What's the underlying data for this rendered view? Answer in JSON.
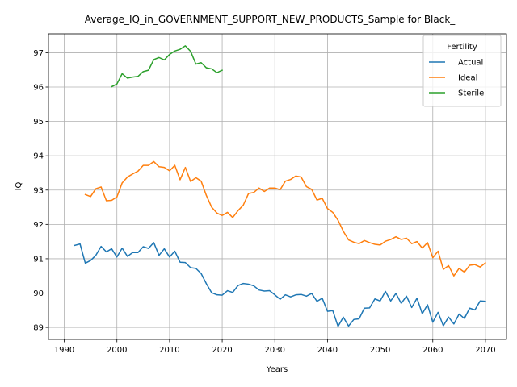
{
  "chart_data": {
    "type": "line",
    "title": "Average_IQ_in_GOVERNMENT_SUPPORT_NEW_PRODUCTS_Sample for Black_",
    "xlabel": "Years",
    "ylabel": "IQ",
    "xlim": [
      1987,
      2074
    ],
    "ylim": [
      88.65,
      97.55
    ],
    "xticks": [
      1990,
      2000,
      2010,
      2020,
      2030,
      2040,
      2050,
      2060,
      2070
    ],
    "yticks": [
      89,
      90,
      91,
      92,
      93,
      94,
      95,
      96,
      97
    ],
    "grid": true,
    "legend": {
      "title": "Fertility",
      "placement": "top-right"
    },
    "series": [
      {
        "name": "Actual",
        "color": "#1f77b4",
        "x": [
          1992,
          1993,
          1994,
          1995,
          1996,
          1997,
          1998,
          1999,
          2000,
          2001,
          2002,
          2003,
          2004,
          2005,
          2006,
          2007,
          2008,
          2009,
          2010,
          2011,
          2012,
          2013,
          2014,
          2015,
          2016,
          2017,
          2018,
          2019,
          2020,
          2021,
          2022,
          2023,
          2024,
          2025,
          2026,
          2027,
          2028,
          2029,
          2030,
          2031,
          2032,
          2033,
          2034,
          2035,
          2036,
          2037,
          2038,
          2039,
          2040,
          2041,
          2042,
          2043,
          2044,
          2045,
          2046,
          2047,
          2048,
          2049,
          2050,
          2051,
          2052,
          2053,
          2054,
          2055,
          2056,
          2057,
          2058,
          2059,
          2060,
          2061,
          2062,
          2063,
          2064,
          2065,
          2066,
          2067,
          2068,
          2069,
          2070
        ],
        "values": [
          91.39,
          91.43,
          90.87,
          90.95,
          91.1,
          91.36,
          91.2,
          91.29,
          91.05,
          91.31,
          91.07,
          91.18,
          91.18,
          91.35,
          91.3,
          91.47,
          91.1,
          91.29,
          91.05,
          91.22,
          90.9,
          90.89,
          90.74,
          90.72,
          90.57,
          90.27,
          90.01,
          89.95,
          89.94,
          90.07,
          90.02,
          90.22,
          90.28,
          90.26,
          90.21,
          90.09,
          90.06,
          90.07,
          89.95,
          89.82,
          89.95,
          89.89,
          89.95,
          89.96,
          89.91,
          89.99,
          89.76,
          89.85,
          89.47,
          89.49,
          89.03,
          89.3,
          89.04,
          89.23,
          89.25,
          89.56,
          89.57,
          89.83,
          89.77,
          90.05,
          89.77,
          89.99,
          89.7,
          89.91,
          89.58,
          89.85,
          89.4,
          89.66,
          89.15,
          89.44,
          89.05,
          89.3,
          89.1,
          89.39,
          89.26,
          89.56,
          89.51,
          89.77,
          89.76
        ]
      },
      {
        "name": "Ideal",
        "color": "#ff7f0e",
        "x": [
          1994,
          1995,
          1996,
          1997,
          1998,
          1999,
          2000,
          2001,
          2002,
          2003,
          2004,
          2005,
          2006,
          2007,
          2008,
          2009,
          2010,
          2011,
          2012,
          2013,
          2014,
          2015,
          2016,
          2017,
          2018,
          2019,
          2020,
          2021,
          2022,
          2023,
          2024,
          2025,
          2026,
          2027,
          2028,
          2029,
          2030,
          2031,
          2032,
          2033,
          2034,
          2035,
          2036,
          2037,
          2038,
          2039,
          2040,
          2041,
          2042,
          2043,
          2044,
          2045,
          2046,
          2047,
          2048,
          2049,
          2050,
          2051,
          2052,
          2053,
          2054,
          2055,
          2056,
          2057,
          2058,
          2059,
          2060,
          2061,
          2062,
          2063,
          2064,
          2065,
          2066,
          2067,
          2068,
          2069,
          2070
        ],
        "values": [
          92.87,
          92.81,
          93.04,
          93.09,
          92.69,
          92.7,
          92.8,
          93.21,
          93.38,
          93.47,
          93.55,
          93.72,
          93.72,
          93.83,
          93.68,
          93.66,
          93.56,
          93.72,
          93.3,
          93.66,
          93.25,
          93.36,
          93.26,
          92.84,
          92.5,
          92.33,
          92.26,
          92.35,
          92.2,
          92.4,
          92.56,
          92.9,
          92.93,
          93.06,
          92.96,
          93.06,
          93.06,
          93.01,
          93.26,
          93.31,
          93.41,
          93.38,
          93.1,
          93.02,
          92.71,
          92.76,
          92.46,
          92.35,
          92.12,
          91.8,
          91.55,
          91.48,
          91.44,
          91.53,
          91.47,
          91.42,
          91.4,
          91.51,
          91.56,
          91.64,
          91.56,
          91.6,
          91.44,
          91.5,
          91.31,
          91.47,
          91.03,
          91.22,
          90.69,
          90.8,
          90.5,
          90.72,
          90.61,
          90.81,
          90.83,
          90.76,
          90.88
        ]
      },
      {
        "name": "Sterile",
        "color": "#2ca02c",
        "x": [
          1999,
          2000,
          2001,
          2002,
          2003,
          2004,
          2005,
          2006,
          2007,
          2008,
          2009,
          2010,
          2011,
          2012,
          2013,
          2014,
          2015,
          2016,
          2017,
          2018,
          2019,
          2020
        ],
        "values": [
          96.01,
          96.09,
          96.39,
          96.26,
          96.29,
          96.31,
          96.45,
          96.49,
          96.8,
          96.86,
          96.79,
          96.95,
          97.05,
          97.1,
          97.2,
          97.04,
          96.67,
          96.71,
          96.56,
          96.53,
          96.42,
          96.49
        ]
      }
    ]
  }
}
